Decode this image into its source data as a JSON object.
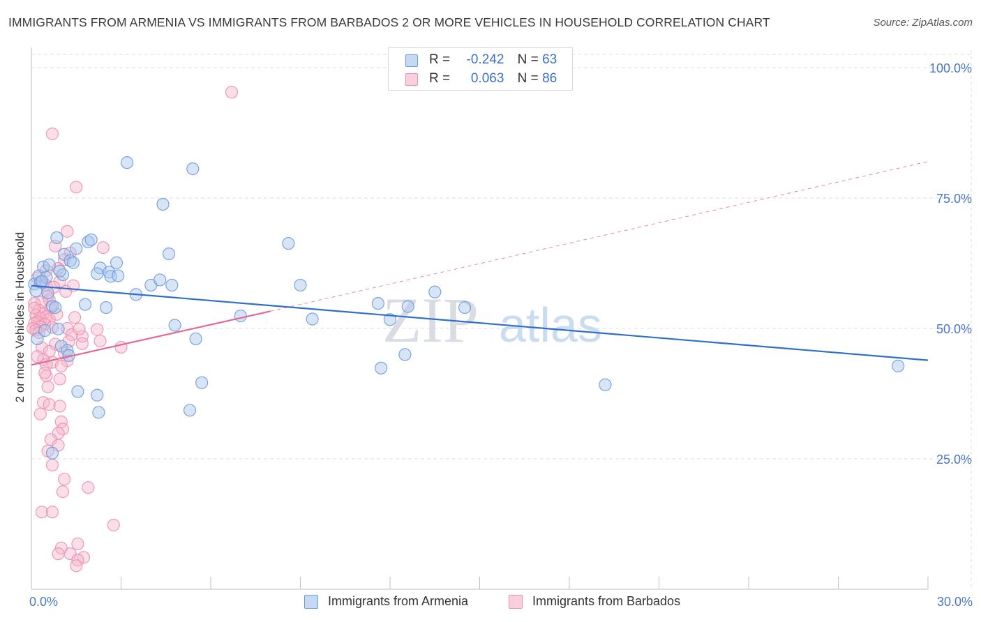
{
  "header": {
    "title": "IMMIGRANTS FROM ARMENIA VS IMMIGRANTS FROM BARBADOS 2 OR MORE VEHICLES IN HOUSEHOLD CORRELATION CHART",
    "source": "Source: ZipAtlas.com"
  },
  "legend": {
    "series": [
      {
        "r_label": "R =",
        "r_value": "-0.242",
        "n_label": "N =",
        "n_value": "63"
      },
      {
        "r_label": "R =",
        "r_value": "0.063",
        "n_label": "N =",
        "n_value": "86"
      }
    ]
  },
  "watermark": {
    "zip": "ZIP",
    "atlas": "atlas"
  },
  "colors": {
    "armenia_fill": "#a9c6ee",
    "armenia_stroke": "#6d9bdc",
    "armenia_line": "#2e6fce",
    "barbados_fill": "#f5b6cb",
    "barbados_stroke": "#ee8fae",
    "barbados_line": "#e06a94",
    "tick_text": "#4a77c4",
    "grid": "#dcdcdc"
  },
  "chart_data": {
    "type": "scatter",
    "title": "IMMIGRANTS FROM ARMENIA VS IMMIGRANTS FROM BARBADOS 2 OR MORE VEHICLES IN HOUSEHOLD CORRELATION CHART",
    "xlabel": "",
    "ylabel": "2 or more Vehicles in Household",
    "xlim": [
      0,
      30
    ],
    "ylim": [
      0,
      100
    ],
    "x_tick_labels": {
      "left": "0.0%",
      "right": "30.0%"
    },
    "y_tick_labels": [
      "100.0%",
      "75.0%",
      "50.0%",
      "25.0%"
    ],
    "y_tick_values": [
      100,
      75,
      50,
      25
    ],
    "series": [
      {
        "name": "Immigrants from Armenia",
        "R": -0.242,
        "N": 63,
        "trend": {
          "x": [
            0,
            30
          ],
          "y": [
            58.2,
            43.9
          ],
          "dashed_extension": false
        },
        "points": [
          [
            0.1,
            58.5
          ],
          [
            0.15,
            57.2
          ],
          [
            0.25,
            60.1
          ],
          [
            0.3,
            58.9
          ],
          [
            0.4,
            61.8
          ],
          [
            0.45,
            49.6
          ],
          [
            0.5,
            59.8
          ],
          [
            0.55,
            56.8
          ],
          [
            0.6,
            62.2
          ],
          [
            0.7,
            54.3
          ],
          [
            0.8,
            54.0
          ],
          [
            0.85,
            67.4
          ],
          [
            0.9,
            49.9
          ],
          [
            1.0,
            46.6
          ],
          [
            1.05,
            60.3
          ],
          [
            1.1,
            64.2
          ],
          [
            1.2,
            45.8
          ],
          [
            1.3,
            63.0
          ],
          [
            1.4,
            62.6
          ],
          [
            1.5,
            65.3
          ],
          [
            0.7,
            26.1
          ],
          [
            1.55,
            37.9
          ],
          [
            1.8,
            54.6
          ],
          [
            1.9,
            66.6
          ],
          [
            2.0,
            67.0
          ],
          [
            2.3,
            61.6
          ],
          [
            2.2,
            60.5
          ],
          [
            2.6,
            60.8
          ],
          [
            2.5,
            54.0
          ],
          [
            2.65,
            60.0
          ],
          [
            2.9,
            60.1
          ],
          [
            2.85,
            62.6
          ],
          [
            3.2,
            81.8
          ],
          [
            3.5,
            56.5
          ],
          [
            4.0,
            58.3
          ],
          [
            4.3,
            59.3
          ],
          [
            4.4,
            73.8
          ],
          [
            4.6,
            64.3
          ],
          [
            4.7,
            58.3
          ],
          [
            4.8,
            50.6
          ],
          [
            5.3,
            34.3
          ],
          [
            5.4,
            80.6
          ],
          [
            5.5,
            48.0
          ],
          [
            5.7,
            39.6
          ],
          [
            2.2,
            37.2
          ],
          [
            2.25,
            33.9
          ],
          [
            7.0,
            52.4
          ],
          [
            8.6,
            66.3
          ],
          [
            9.0,
            58.3
          ],
          [
            9.4,
            51.8
          ],
          [
            11.6,
            54.8
          ],
          [
            11.7,
            42.4
          ],
          [
            12.0,
            51.7
          ],
          [
            12.5,
            45.0
          ],
          [
            12.6,
            54.2
          ],
          [
            13.5,
            57.0
          ],
          [
            14.5,
            54.0
          ],
          [
            19.2,
            39.2
          ],
          [
            29.0,
            42.8
          ],
          [
            0.2,
            48.0
          ],
          [
            0.35,
            59.0
          ],
          [
            0.95,
            61.0
          ],
          [
            1.25,
            44.8
          ]
        ]
      },
      {
        "name": "Immigrants from Barbados",
        "R": 0.063,
        "N": 86,
        "trend": {
          "x": [
            0,
            8.0
          ],
          "y": [
            43.0,
            53.3
          ],
          "dashed_extension": {
            "x": [
              8.0,
              30
            ],
            "y": [
              53.3,
              82.0
            ]
          }
        },
        "points": [
          [
            6.7,
            95.3
          ],
          [
            0.7,
            87.3
          ],
          [
            1.5,
            77.1
          ],
          [
            1.2,
            68.6
          ],
          [
            0.8,
            65.8
          ],
          [
            2.4,
            65.5
          ],
          [
            1.3,
            64.5
          ],
          [
            1.1,
            63.2
          ],
          [
            0.9,
            61.5
          ],
          [
            0.5,
            58.2
          ],
          [
            0.95,
            59.0
          ],
          [
            1.4,
            58.2
          ],
          [
            0.2,
            59.7
          ],
          [
            0.4,
            58.8
          ],
          [
            1.15,
            57.1
          ],
          [
            0.55,
            56.2
          ],
          [
            0.6,
            55.5
          ],
          [
            0.35,
            55.1
          ],
          [
            0.1,
            54.8
          ],
          [
            0.65,
            54.0
          ],
          [
            0.25,
            53.5
          ],
          [
            0.4,
            52.8
          ],
          [
            0.15,
            52.5
          ],
          [
            0.5,
            52.3
          ],
          [
            0.3,
            52.0
          ],
          [
            0.6,
            51.8
          ],
          [
            0.2,
            51.3
          ],
          [
            0.1,
            51.0
          ],
          [
            0.45,
            50.8
          ],
          [
            0.3,
            50.3
          ],
          [
            0.05,
            50.0
          ],
          [
            0.15,
            49.7
          ],
          [
            0.7,
            50.2
          ],
          [
            1.2,
            50.0
          ],
          [
            2.2,
            49.8
          ],
          [
            1.7,
            48.5
          ],
          [
            2.3,
            47.6
          ],
          [
            1.7,
            47.1
          ],
          [
            0.8,
            47.0
          ],
          [
            3.0,
            46.4
          ],
          [
            0.35,
            46.3
          ],
          [
            0.6,
            45.6
          ],
          [
            1.1,
            45.3
          ],
          [
            0.4,
            44.0
          ],
          [
            1.2,
            43.8
          ],
          [
            0.7,
            43.5
          ],
          [
            0.5,
            43.1
          ],
          [
            1.0,
            42.8
          ],
          [
            0.5,
            40.9
          ],
          [
            0.55,
            38.8
          ],
          [
            0.4,
            35.8
          ],
          [
            0.6,
            35.4
          ],
          [
            0.95,
            35.1
          ],
          [
            0.3,
            33.6
          ],
          [
            1.0,
            32.1
          ],
          [
            1.05,
            30.7
          ],
          [
            0.9,
            29.9
          ],
          [
            0.65,
            28.7
          ],
          [
            0.9,
            27.6
          ],
          [
            0.55,
            26.5
          ],
          [
            0.7,
            23.8
          ],
          [
            1.1,
            21.1
          ],
          [
            1.9,
            19.5
          ],
          [
            1.05,
            18.7
          ],
          [
            0.35,
            14.8
          ],
          [
            0.7,
            14.8
          ],
          [
            2.75,
            12.3
          ],
          [
            1.55,
            8.7
          ],
          [
            1.0,
            7.9
          ],
          [
            0.9,
            6.8
          ],
          [
            1.3,
            6.8
          ],
          [
            1.75,
            6.1
          ],
          [
            1.55,
            5.6
          ],
          [
            1.5,
            4.5
          ],
          [
            0.1,
            53.9
          ],
          [
            0.25,
            49.2
          ],
          [
            1.35,
            48.8
          ],
          [
            0.85,
            52.7
          ],
          [
            1.6,
            49.9
          ],
          [
            0.75,
            57.9
          ],
          [
            0.5,
            61.1
          ],
          [
            1.45,
            52.1
          ],
          [
            0.2,
            44.6
          ],
          [
            0.95,
            40.3
          ],
          [
            1.25,
            47.5
          ],
          [
            0.45,
            41.5
          ]
        ]
      }
    ]
  },
  "bottom_legend": {
    "items": [
      {
        "label": "Immigrants from Armenia"
      },
      {
        "label": "Immigrants from Barbados"
      }
    ]
  }
}
